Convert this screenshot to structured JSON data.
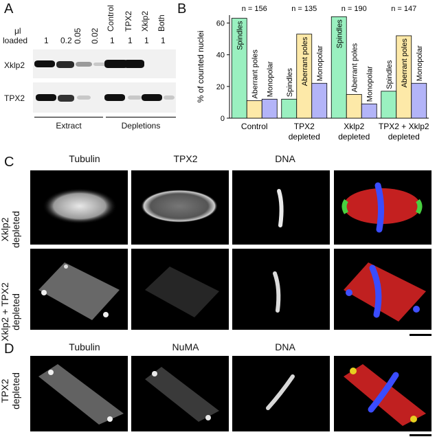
{
  "panel_A": {
    "letter": "A",
    "loaded_label_line1": "μl",
    "loaded_label_line2": "loaded",
    "loaded_values": [
      "1",
      "0.2",
      "0.05",
      "0.02",
      "1",
      "1",
      "1",
      "1"
    ],
    "lane_headers": [
      "Control",
      "TPX2",
      "Xklp2",
      "Both"
    ],
    "row_labels": [
      "Xklp2",
      "TPX2"
    ],
    "group_labels": [
      "Extract",
      "Depletions"
    ],
    "xklp2_band_intensity": [
      1.0,
      0.75,
      0.35,
      0.08,
      1.0,
      1.0,
      0.0,
      0.0
    ],
    "tpx2_band_intensity": [
      1.0,
      0.7,
      0.2,
      0.05,
      1.0,
      0.1,
      1.0,
      0.15
    ]
  },
  "panel_B": {
    "letter": "B",
    "chart_data": {
      "type": "bar",
      "ylabel": "% of counted nuclei",
      "ylim": [
        0,
        65
      ],
      "yticks": [
        "0",
        "20",
        "40",
        "60"
      ],
      "groups": [
        "Control",
        "TPX2\ndepleted",
        "Xklp2\ndepleted",
        "TPX2 + Xklp2\ndepleted"
      ],
      "group_labels_line1": [
        "Control",
        "TPX2",
        "Xklp2",
        "TPX2 + Xklp2"
      ],
      "group_labels_line2": [
        "",
        "depleted",
        "depleted",
        "depleted"
      ],
      "n_labels": [
        "n = 156",
        "n = 135",
        "n = 190",
        "n = 147"
      ],
      "series": [
        {
          "name": "Spindles",
          "color": "#9af0c0",
          "values": [
            63,
            12,
            64,
            17
          ]
        },
        {
          "name": "Aberrant poles",
          "color": "#fde9a8",
          "values": [
            11,
            53,
            15,
            52
          ]
        },
        {
          "name": "Monopolar",
          "color": "#b3b4f8",
          "values": [
            12,
            22,
            9,
            22
          ]
        }
      ]
    }
  },
  "panel_C": {
    "letter": "C",
    "column_headers": [
      "Tubulin",
      "TPX2",
      "DNA"
    ],
    "row_labels": [
      [
        "Xklp2",
        "depleted"
      ],
      [
        "Xklp2 + TPX2",
        "depleted"
      ]
    ]
  },
  "panel_D": {
    "letter": "D",
    "column_headers": [
      "Tubulin",
      "NuMA",
      "DNA"
    ],
    "row_labels": [
      [
        "TPX2",
        "depleted"
      ]
    ]
  }
}
